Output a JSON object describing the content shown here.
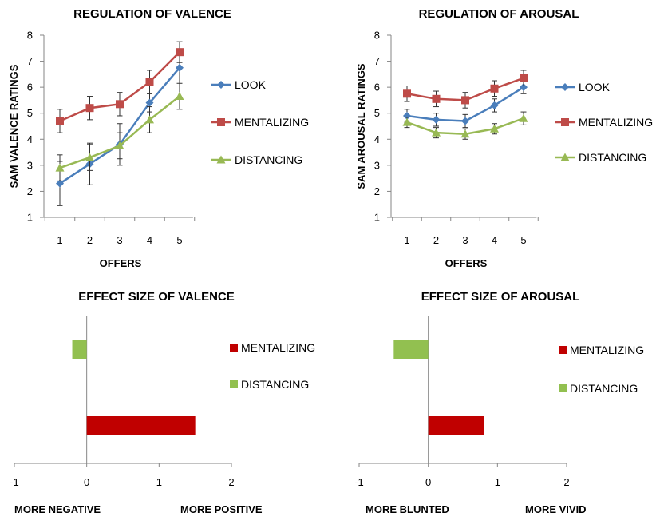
{
  "colors": {
    "look": "#4a7ebb",
    "mentalizing": "#be4b48",
    "distancing": "#98b954",
    "bar_mentalizing": "#c00000",
    "bar_distancing": "#92c050",
    "axis": "#868686"
  },
  "chart_data": [
    {
      "id": "valence",
      "type": "line",
      "title": "REGULATION  OF  VALENCE",
      "xlabel": "OFFERS",
      "ylabel": "SAM  VALENCE  RATINGS",
      "x": [
        1,
        2,
        3,
        4,
        5
      ],
      "x_tick_labels": [
        "1",
        "2",
        "3",
        "4",
        "5"
      ],
      "ylim": [
        1,
        8
      ],
      "y_tick_labels": [
        "1",
        "2",
        "3",
        "4",
        "5",
        "6",
        "7",
        "8"
      ],
      "grid": false,
      "legend_position": "right",
      "series": [
        {
          "name": "LOOK",
          "key": "look",
          "marker": "diamond",
          "values": [
            2.3,
            3.05,
            3.8,
            5.4,
            6.75
          ],
          "errors": [
            0.85,
            0.8,
            0.8,
            0.35,
            0.7
          ]
        },
        {
          "name": "MENTALIZING",
          "key": "mentalizing",
          "marker": "square",
          "values": [
            4.7,
            5.2,
            5.35,
            6.2,
            7.35
          ],
          "errors": [
            0.45,
            0.45,
            0.45,
            0.45,
            0.4
          ]
        },
        {
          "name": "DISTANCING",
          "key": "distancing",
          "marker": "triangle",
          "values": [
            2.9,
            3.3,
            3.75,
            4.75,
            5.65
          ],
          "errors": [
            0.5,
            0.5,
            0.5,
            0.5,
            0.5
          ]
        }
      ]
    },
    {
      "id": "arousal",
      "type": "line",
      "title": "REGULATION  OF  AROUSAL",
      "xlabel": "OFFERS",
      "ylabel": "SAM  AROUSAL  RATINGS",
      "x": [
        1,
        2,
        3,
        4,
        5
      ],
      "x_tick_labels": [
        "1",
        "2",
        "3",
        "4",
        "5"
      ],
      "ylim": [
        1,
        8
      ],
      "y_tick_labels": [
        "1",
        "2",
        "3",
        "4",
        "5",
        "6",
        "7",
        "8"
      ],
      "grid": false,
      "legend_position": "right",
      "series": [
        {
          "name": "LOOK",
          "key": "look",
          "marker": "diamond",
          "values": [
            4.9,
            4.75,
            4.7,
            5.3,
            6.0
          ],
          "errors": [
            0.25,
            0.25,
            0.25,
            0.25,
            0.25
          ]
        },
        {
          "name": "MENTALIZING",
          "key": "mentalizing",
          "marker": "square",
          "values": [
            5.75,
            5.55,
            5.5,
            5.95,
            6.35
          ],
          "errors": [
            0.3,
            0.3,
            0.3,
            0.3,
            0.3
          ]
        },
        {
          "name": "DISTANCING",
          "key": "distancing",
          "marker": "triangle",
          "values": [
            4.65,
            4.25,
            4.2,
            4.4,
            4.8
          ],
          "errors": [
            0.2,
            0.2,
            0.2,
            0.2,
            0.25
          ]
        }
      ]
    },
    {
      "id": "effect-valence",
      "type": "bar",
      "orientation": "horizontal",
      "title": "EFFECT  SIZE  OF  VALENCE",
      "xlim": [
        -1,
        2
      ],
      "x_tick_labels": [
        "-1",
        "0",
        "1",
        "2"
      ],
      "negative_label": "MORE NEGATIVE",
      "positive_label": "MORE POSITIVE",
      "legend_position": "right",
      "series": [
        {
          "name": "MENTALIZING",
          "key": "bar_mentalizing",
          "value": 1.5
        },
        {
          "name": "DISTANCING",
          "key": "bar_distancing",
          "value": -0.2
        }
      ]
    },
    {
      "id": "effect-arousal",
      "type": "bar",
      "orientation": "horizontal",
      "title": "EFFECT  SIZE  OF  AROUSAL",
      "xlim": [
        -1,
        2
      ],
      "x_tick_labels": [
        "-1",
        "0",
        "1",
        "2"
      ],
      "negative_label": "MORE BLUNTED",
      "positive_label": "MORE VIVID",
      "legend_position": "right",
      "series": [
        {
          "name": "MENTALIZING",
          "key": "bar_mentalizing",
          "value": 0.8
        },
        {
          "name": "DISTANCING",
          "key": "bar_distancing",
          "value": -0.5
        }
      ]
    }
  ]
}
